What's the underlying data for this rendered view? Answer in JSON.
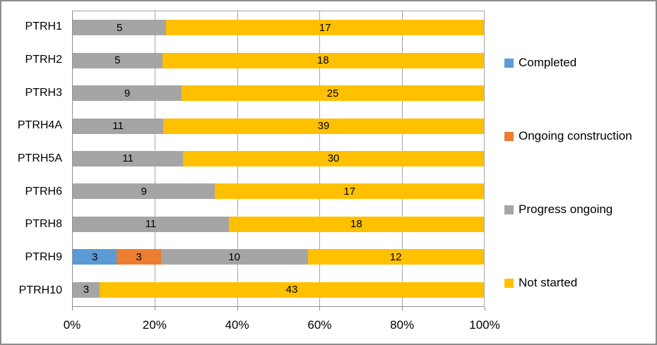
{
  "chart_data": {
    "type": "bar",
    "subtype": "100-percent-stacked-horizontal",
    "title": "",
    "categories": [
      "PTRH1",
      "PTRH2",
      "PTRH3",
      "PTRH4A",
      "PTRH5A",
      "PTRH6",
      "PTRH8",
      "PTRH9",
      "PTRH10"
    ],
    "series": [
      {
        "name": "Completed",
        "color": "#5b9bd5",
        "values": [
          0,
          0,
          0,
          0,
          0,
          0,
          0,
          3,
          0
        ]
      },
      {
        "name": "Ongoing construction",
        "color": "#ed7d31",
        "values": [
          0,
          0,
          0,
          0,
          0,
          0,
          0,
          3,
          0
        ]
      },
      {
        "name": "Progress ongoing",
        "color": "#a5a5a5",
        "values": [
          5,
          5,
          9,
          11,
          11,
          9,
          11,
          10,
          3
        ]
      },
      {
        "name": "Not started",
        "color": "#ffc000",
        "values": [
          17,
          18,
          25,
          39,
          30,
          17,
          18,
          12,
          43
        ]
      }
    ],
    "x_ticks": [
      "0%",
      "20%",
      "40%",
      "60%",
      "80%",
      "100%"
    ],
    "xlim": [
      0,
      100
    ],
    "grid": true,
    "legend_position": "right",
    "data_labels_shown": true
  },
  "colors": {
    "gridline": "#a6a6a6",
    "axis": "#8e8e8e",
    "frame_border": "#8d8d90",
    "background": "#ffffff",
    "label_text": "#000000"
  }
}
